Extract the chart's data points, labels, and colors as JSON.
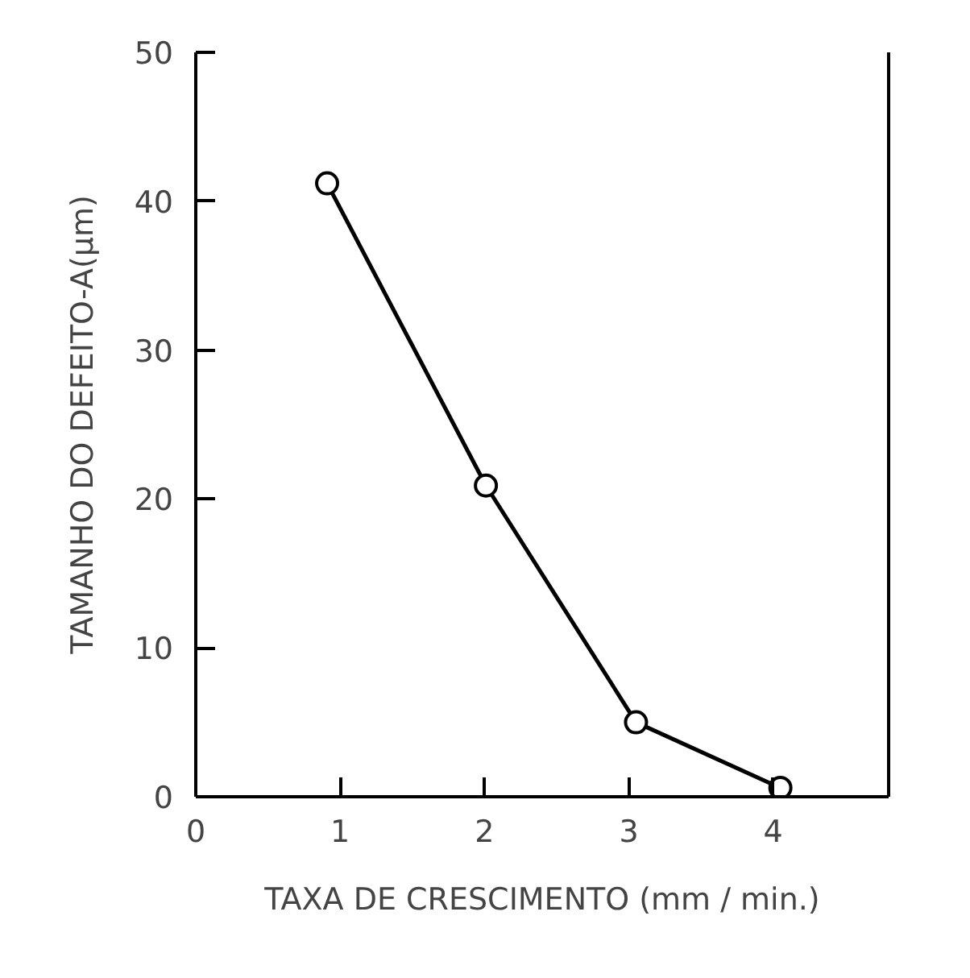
{
  "chart_data": {
    "type": "line",
    "xlabel": "TAXA DE CRESCIMENTO (mm / min.)",
    "ylabel": "TAMANHO DO DEFEITO-A(μm)",
    "x": [
      0.91,
      2.01,
      3.05,
      4.05
    ],
    "series": [
      {
        "color": "#000000",
        "values": [
          41.2,
          20.9,
          5.0,
          0.6
        ]
      }
    ],
    "xlim": [
      0,
      4.8
    ],
    "xticks": [
      0,
      1,
      2,
      3,
      4
    ],
    "ylim": [
      0,
      50
    ],
    "yticks": [
      0,
      10,
      20,
      30,
      40,
      50
    ],
    "marker": "circle",
    "line_style": "solid",
    "grid": false
  }
}
